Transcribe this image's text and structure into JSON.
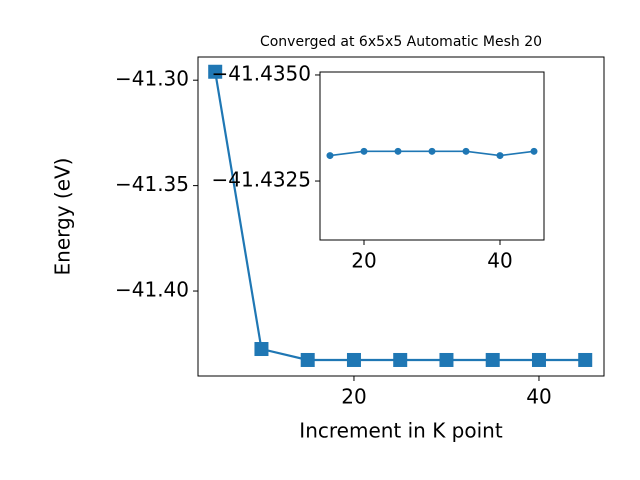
{
  "chart_data": [
    {
      "type": "line",
      "title": "Converged at 6x5x5 Automatic Mesh 20",
      "x_label": "Increment in K point",
      "y_label": "Energy (eV)",
      "x": [
        5,
        10,
        15,
        20,
        25,
        30,
        35,
        40,
        45
      ],
      "series": [
        {
          "color": "#1f77b4",
          "marker": "square",
          "values": [
            -41.296,
            -41.4275,
            -41.4327,
            -41.4327,
            -41.4327,
            -41.4327,
            -41.4327,
            -41.4327,
            -41.4327
          ]
        }
      ],
      "xlim": [
        3.14,
        47.03
      ],
      "ylim": [
        -41.4403,
        -41.289
      ],
      "xticks": [
        20,
        40
      ],
      "yticks": [
        {
          "value": -41.3,
          "label": "−41.30"
        },
        {
          "value": -41.35,
          "label": "−41.35"
        },
        {
          "value": -41.4,
          "label": "−41.40"
        }
      ]
    },
    {
      "type": "line",
      "x": [
        15,
        20,
        25,
        30,
        35,
        40,
        45
      ],
      "series": [
        {
          "color": "#1f77b4",
          "marker": "circle",
          "values": [
            -41.4331,
            -41.4332,
            -41.4332,
            -41.4332,
            -41.4332,
            -41.4331,
            -41.4332
          ]
        }
      ],
      "xlim": [
        13.53,
        46.47
      ],
      "ylim": [
        -41.43111,
        -41.43507
      ],
      "xticks": [
        20,
        40
      ],
      "yticks": [
        {
          "value": -41.435,
          "label": "−41.4350"
        },
        {
          "value": -41.4325,
          "label": "−41.4325"
        }
      ]
    }
  ]
}
